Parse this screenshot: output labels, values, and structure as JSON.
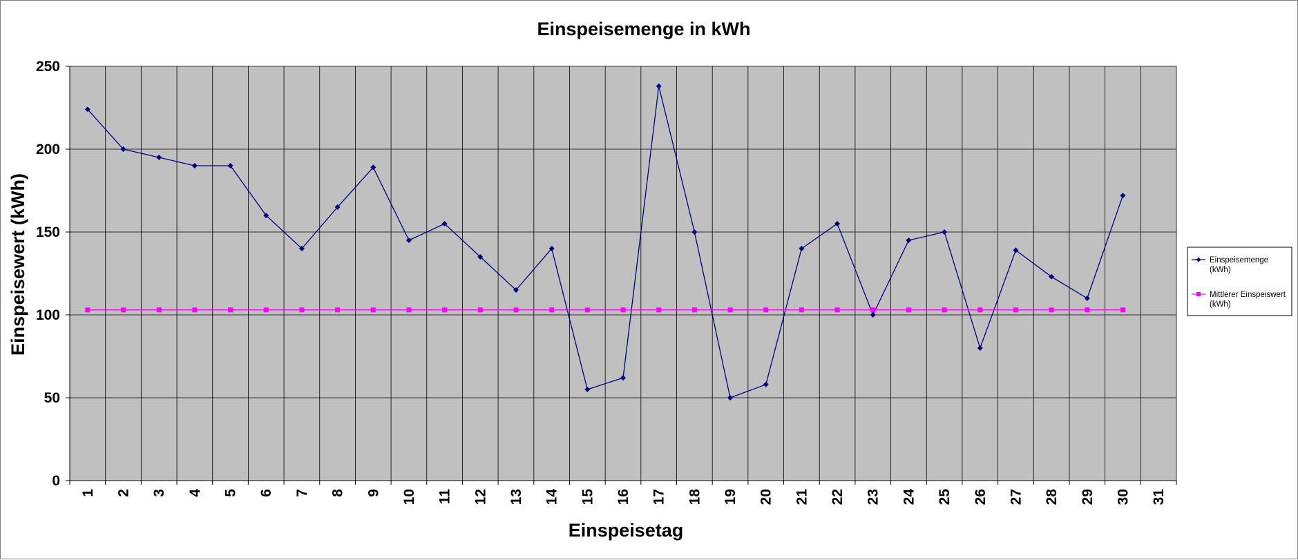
{
  "chart_data": {
    "type": "line",
    "title": "Einspeisemenge in kWh",
    "xlabel": "Einspeisetag",
    "ylabel": "Einspeisewert  (kWh)",
    "categories": [
      "1",
      "2",
      "3",
      "4",
      "5",
      "6",
      "7",
      "8",
      "9",
      "10",
      "11",
      "12",
      "13",
      "14",
      "15",
      "16",
      "17",
      "18",
      "19",
      "20",
      "21",
      "22",
      "23",
      "24",
      "25",
      "26",
      "27",
      "28",
      "29",
      "30",
      "31"
    ],
    "ylim": [
      0,
      250
    ],
    "yticks": [
      "0",
      "50",
      "100",
      "150",
      "200",
      "250"
    ],
    "grid": true,
    "legend_position": "right",
    "plot_background": "#c0c0c0",
    "series": [
      {
        "name_lines": [
          "Einspeisemenge",
          "(kWh)"
        ],
        "color": "#000080",
        "marker": "diamond",
        "values": [
          224,
          200,
          195,
          190,
          190,
          160,
          140,
          165,
          189,
          145,
          155,
          135,
          115,
          140,
          55,
          62,
          238,
          150,
          50,
          58,
          140,
          155,
          100,
          145,
          150,
          80,
          139,
          123,
          110,
          172,
          null
        ]
      },
      {
        "name_lines": [
          "Mittlerer Einspeiswert",
          "(kWh)"
        ],
        "color": "#ff00ff",
        "marker": "square",
        "values": [
          103,
          103,
          103,
          103,
          103,
          103,
          103,
          103,
          103,
          103,
          103,
          103,
          103,
          103,
          103,
          103,
          103,
          103,
          103,
          103,
          103,
          103,
          103,
          103,
          103,
          103,
          103,
          103,
          103,
          103,
          null
        ]
      }
    ]
  }
}
